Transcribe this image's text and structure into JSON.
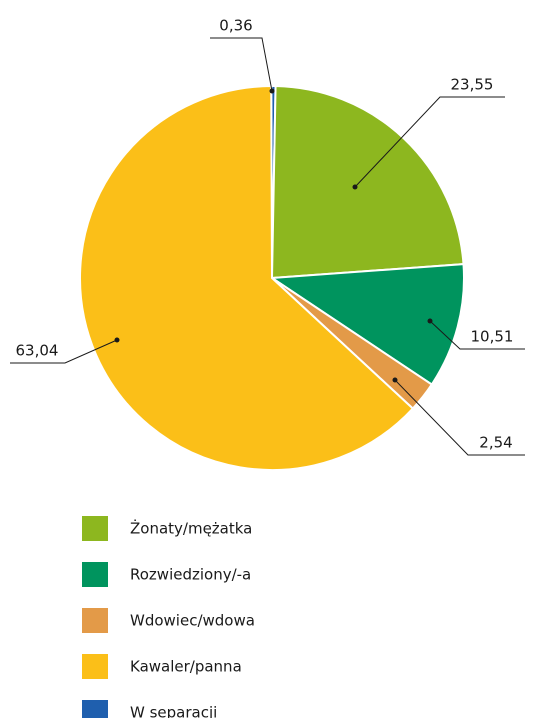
{
  "chart_data": {
    "type": "pie",
    "categories": [
      "Żonaty/mężatka",
      "Rozwiedziony/-a",
      "Wdowiec/wdowa",
      "Kawaler/panna",
      "W separacji"
    ],
    "values": [
      23.55,
      10.51,
      2.54,
      63.04,
      0.36
    ],
    "value_labels": [
      "23,55",
      "10,51",
      "2,54",
      "63,04",
      "0,36"
    ],
    "colors": [
      "#8db71f",
      "#00945e",
      "#e39a48",
      "#fbbf18",
      "#1f5fae"
    ]
  }
}
